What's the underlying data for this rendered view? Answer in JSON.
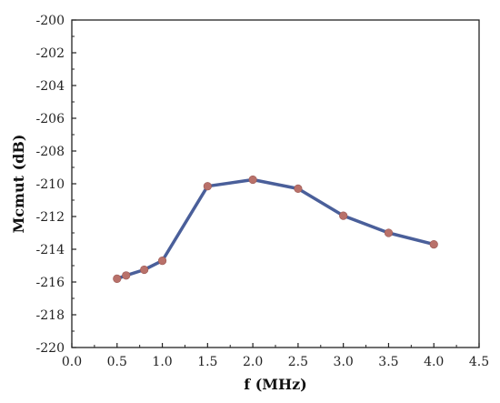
{
  "chart_data": {
    "type": "line",
    "xlabel": "f (MHz)",
    "ylabel": "Mcmut (dB)",
    "xlim": [
      0.0,
      4.5
    ],
    "ylim": [
      -220,
      -200
    ],
    "xticks": [
      "0.0",
      "0.5",
      "1.0",
      "1.5",
      "2.0",
      "2.5",
      "3.0",
      "3.5",
      "4.0",
      "4.5"
    ],
    "yticks": [
      "-200",
      "-202",
      "-204",
      "-206",
      "-208",
      "-210",
      "-212",
      "-214",
      "-216",
      "-218",
      "-220"
    ],
    "grid": false,
    "series": [
      {
        "x": [
          0.5,
          0.6,
          0.8,
          1.0,
          1.5,
          2.0,
          2.5,
          3.0,
          3.5,
          4.0
        ],
        "y": [
          -215.8,
          -215.6,
          -215.25,
          -214.7,
          -210.15,
          -209.75,
          -210.3,
          -211.95,
          -213.0,
          -213.7
        ]
      }
    ],
    "line_color": "#4a5f9a",
    "marker_color": "#b9716a"
  }
}
